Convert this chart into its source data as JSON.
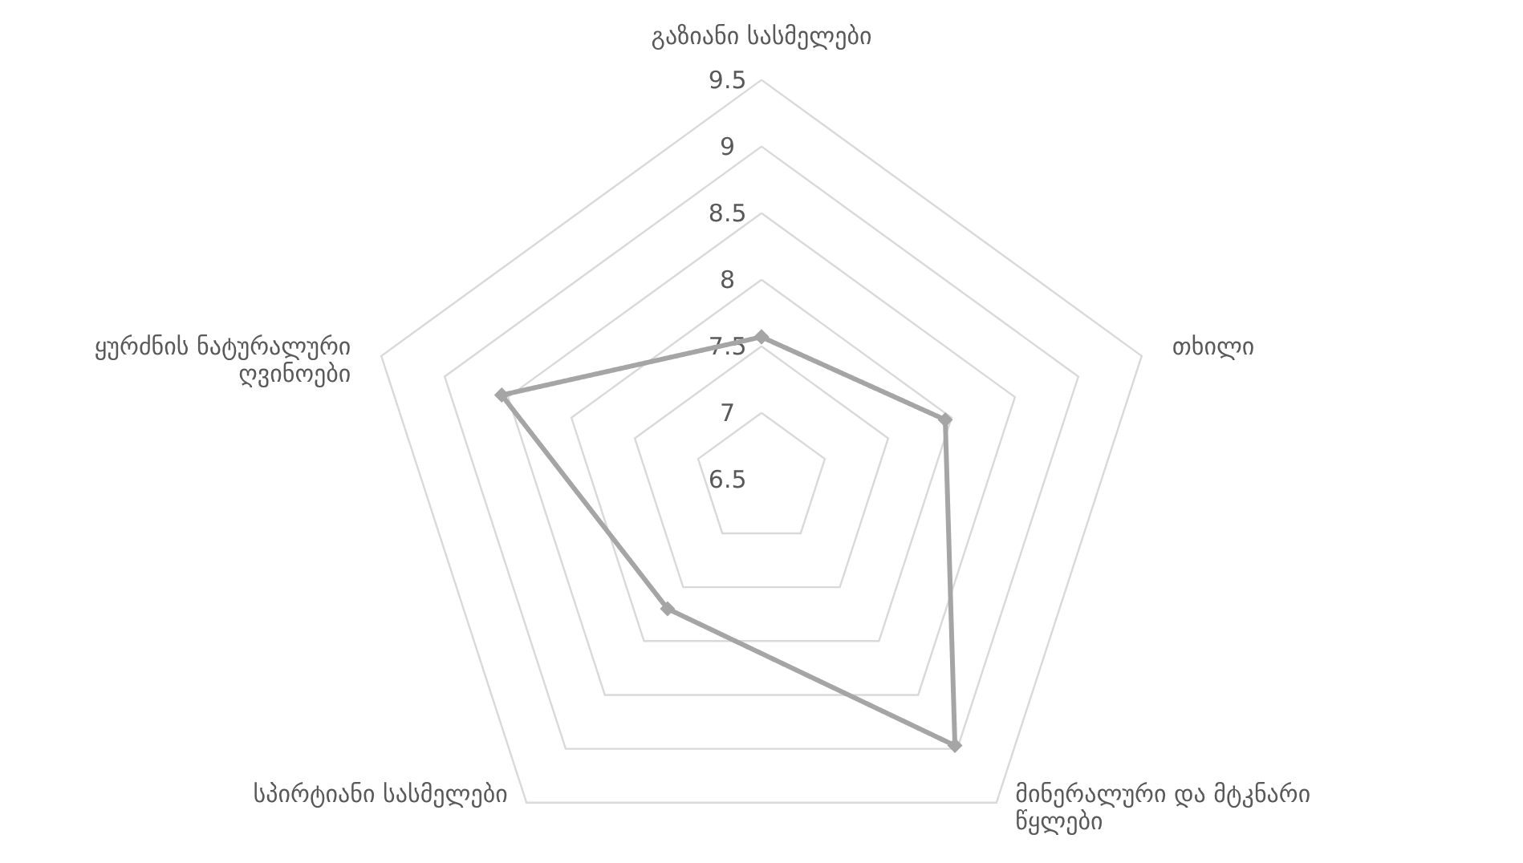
{
  "chart_data": {
    "type": "radar",
    "categories": [
      "გაზიანი სასმელები",
      "თხილი",
      "მინერალური და მტკნარი წყლები",
      "სპირტიანი სასმელები",
      "ყურძნის ნატურალური ღვინოები"
    ],
    "series": [
      {
        "color": "#a5a5a5",
        "values": [
          7.57,
          7.95,
          8.97,
          7.7,
          8.55
        ]
      }
    ],
    "ylim": [
      6.5,
      9.5
    ],
    "yticks": [
      6.5,
      7,
      7.5,
      8,
      8.5,
      9,
      9.5
    ],
    "grid": true,
    "marker": "diamond",
    "line_style": "solid"
  }
}
